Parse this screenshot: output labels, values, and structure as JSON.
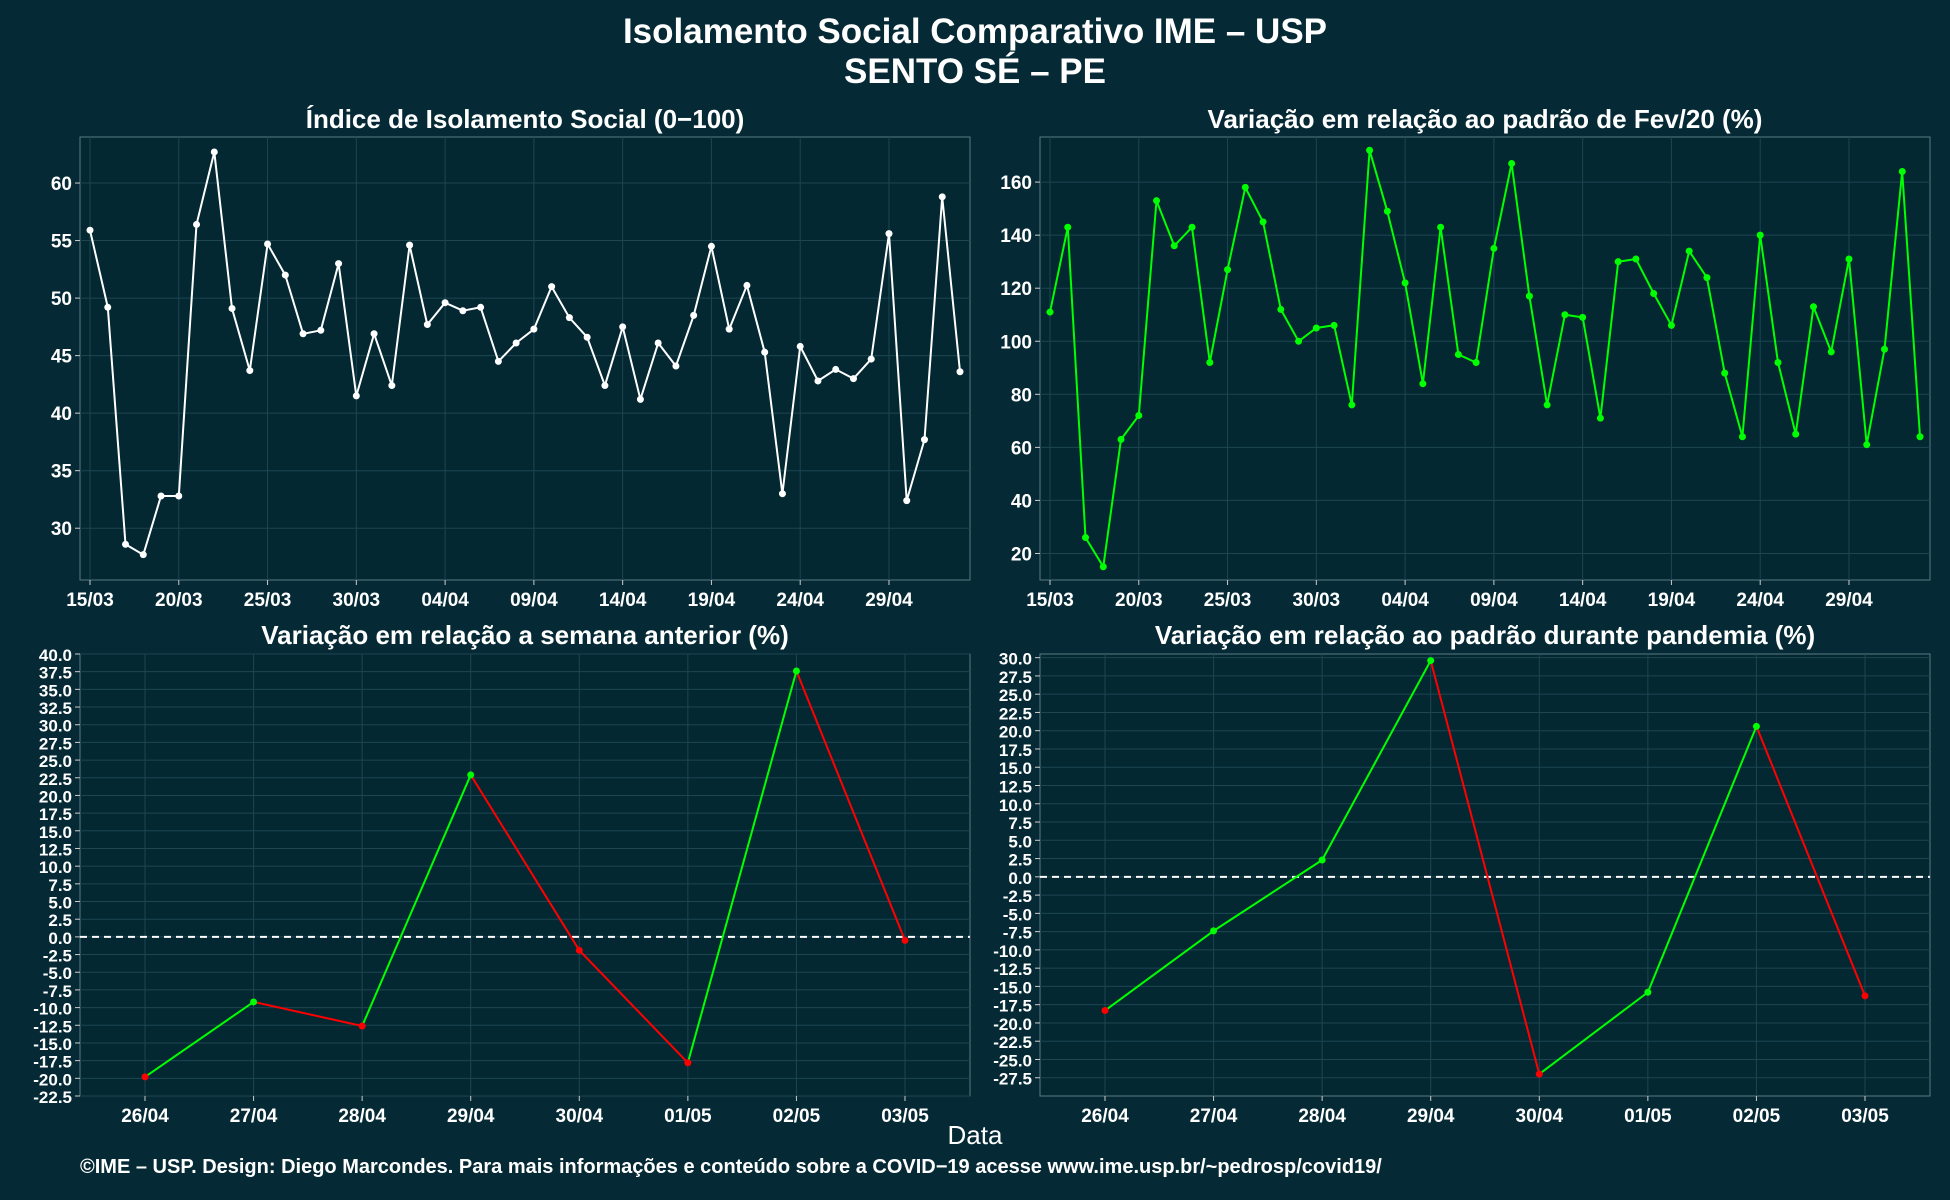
{
  "title_line1": "Isolamento Social Comparativo IME – USP",
  "title_line2": "SENTO SÉ – PE",
  "xlabel": "Data",
  "caption": "©IME – USP. Design: Diego Marcondes. Para mais informações e conteúdo sobre a COVID−19 acesse www.ime.usp.br/~pedrosp/covid19/",
  "colors": {
    "background": "#062a35",
    "panel": "#032832",
    "white_series": "#ffffff",
    "green": "#00ff00",
    "red": "#ff0000",
    "grid": "#1d4552"
  },
  "chart_data": [
    {
      "type": "line",
      "title": "Índice de Isolamento Social (0−100)",
      "x_tick_labels": [
        "15/03",
        "20/03",
        "25/03",
        "30/03",
        "04/04",
        "09/04",
        "14/04",
        "19/04",
        "24/04",
        "29/04"
      ],
      "x_dates_start": "15/03",
      "ylim": [
        25.5,
        64
      ],
      "y_ticks": [
        30,
        35,
        40,
        45,
        50,
        55,
        60
      ],
      "series": [
        {
          "color": "white",
          "values": [
            55.9,
            49.2,
            28.6,
            27.7,
            32.8,
            32.8,
            56.4,
            62.7,
            49.1,
            43.7,
            54.7,
            52.0,
            46.9,
            47.2,
            53.0,
            41.5,
            46.9,
            42.4,
            54.6,
            47.7,
            49.6,
            48.9,
            49.2,
            44.5,
            46.1,
            47.3,
            51.0,
            48.3,
            46.6,
            42.4,
            47.5,
            41.2,
            46.1,
            44.1,
            48.5,
            54.5,
            47.3,
            51.1,
            45.3,
            33.0,
            45.8,
            42.8,
            43.8,
            43.0,
            44.7,
            55.6,
            32.4,
            37.7,
            58.8,
            43.6
          ]
        }
      ],
      "grid": true
    },
    {
      "type": "line",
      "title": "Variação em relação ao padrão de Fev/20 (%)",
      "x_tick_labels": [
        "15/03",
        "20/03",
        "25/03",
        "30/03",
        "04/04",
        "09/04",
        "14/04",
        "19/04",
        "24/04",
        "29/04"
      ],
      "x_dates_start": "15/03",
      "ylim": [
        10,
        177
      ],
      "y_ticks": [
        20,
        40,
        60,
        80,
        100,
        120,
        140,
        160
      ],
      "series": [
        {
          "color": "green",
          "values": [
            111,
            143,
            26,
            15,
            63,
            72,
            153,
            136,
            143,
            92,
            127,
            158,
            145,
            112,
            100,
            105,
            106,
            76,
            172,
            149,
            122,
            84,
            143,
            95,
            92,
            135,
            167,
            117,
            76,
            110,
            109,
            71,
            130,
            131,
            118,
            106,
            134,
            124,
            88,
            64,
            140,
            92,
            65,
            113,
            96,
            131,
            61,
            97,
            164,
            64
          ]
        }
      ],
      "grid": true
    },
    {
      "type": "line",
      "title": "Variação em relação a semana anterior (%)",
      "categories": [
        "26/04",
        "27/04",
        "28/04",
        "29/04",
        "30/04",
        "01/05",
        "02/05",
        "03/05"
      ],
      "ylim": [
        -22.5,
        40
      ],
      "y_ticks": [
        -22.5,
        -20,
        -17.5,
        -15,
        -12.5,
        -10,
        -7.5,
        -5,
        -2.5,
        0,
        2.5,
        5,
        7.5,
        10,
        12.5,
        15,
        17.5,
        20,
        22.5,
        25,
        27.5,
        30,
        32.5,
        35,
        37.5,
        40
      ],
      "reference_line": 0,
      "series": [
        {
          "values": [
            -19.8,
            -9.2,
            -12.6,
            22.9,
            -1.9,
            -17.8,
            37.6,
            -0.5
          ],
          "segment_colors": "green when rising, red when falling"
        }
      ],
      "grid": true
    },
    {
      "type": "line",
      "title": "Variação em relação ao padrão durante pandemia (%)",
      "categories": [
        "26/04",
        "27/04",
        "28/04",
        "29/04",
        "30/04",
        "01/05",
        "02/05",
        "03/05"
      ],
      "ylim": [
        -30,
        30.5
      ],
      "y_ticks": [
        -27.5,
        -25,
        -22.5,
        -20,
        -17.5,
        -15,
        -12.5,
        -10,
        -7.5,
        -5,
        -2.5,
        0,
        2.5,
        5,
        7.5,
        10,
        12.5,
        15,
        17.5,
        20,
        22.5,
        25,
        27.5,
        30
      ],
      "reference_line": 0,
      "series": [
        {
          "values": [
            -18.3,
            -7.4,
            2.3,
            29.6,
            -27.0,
            -15.8,
            20.6,
            -16.3
          ],
          "segment_colors": "green when rising, red when falling"
        }
      ],
      "grid": true
    }
  ]
}
